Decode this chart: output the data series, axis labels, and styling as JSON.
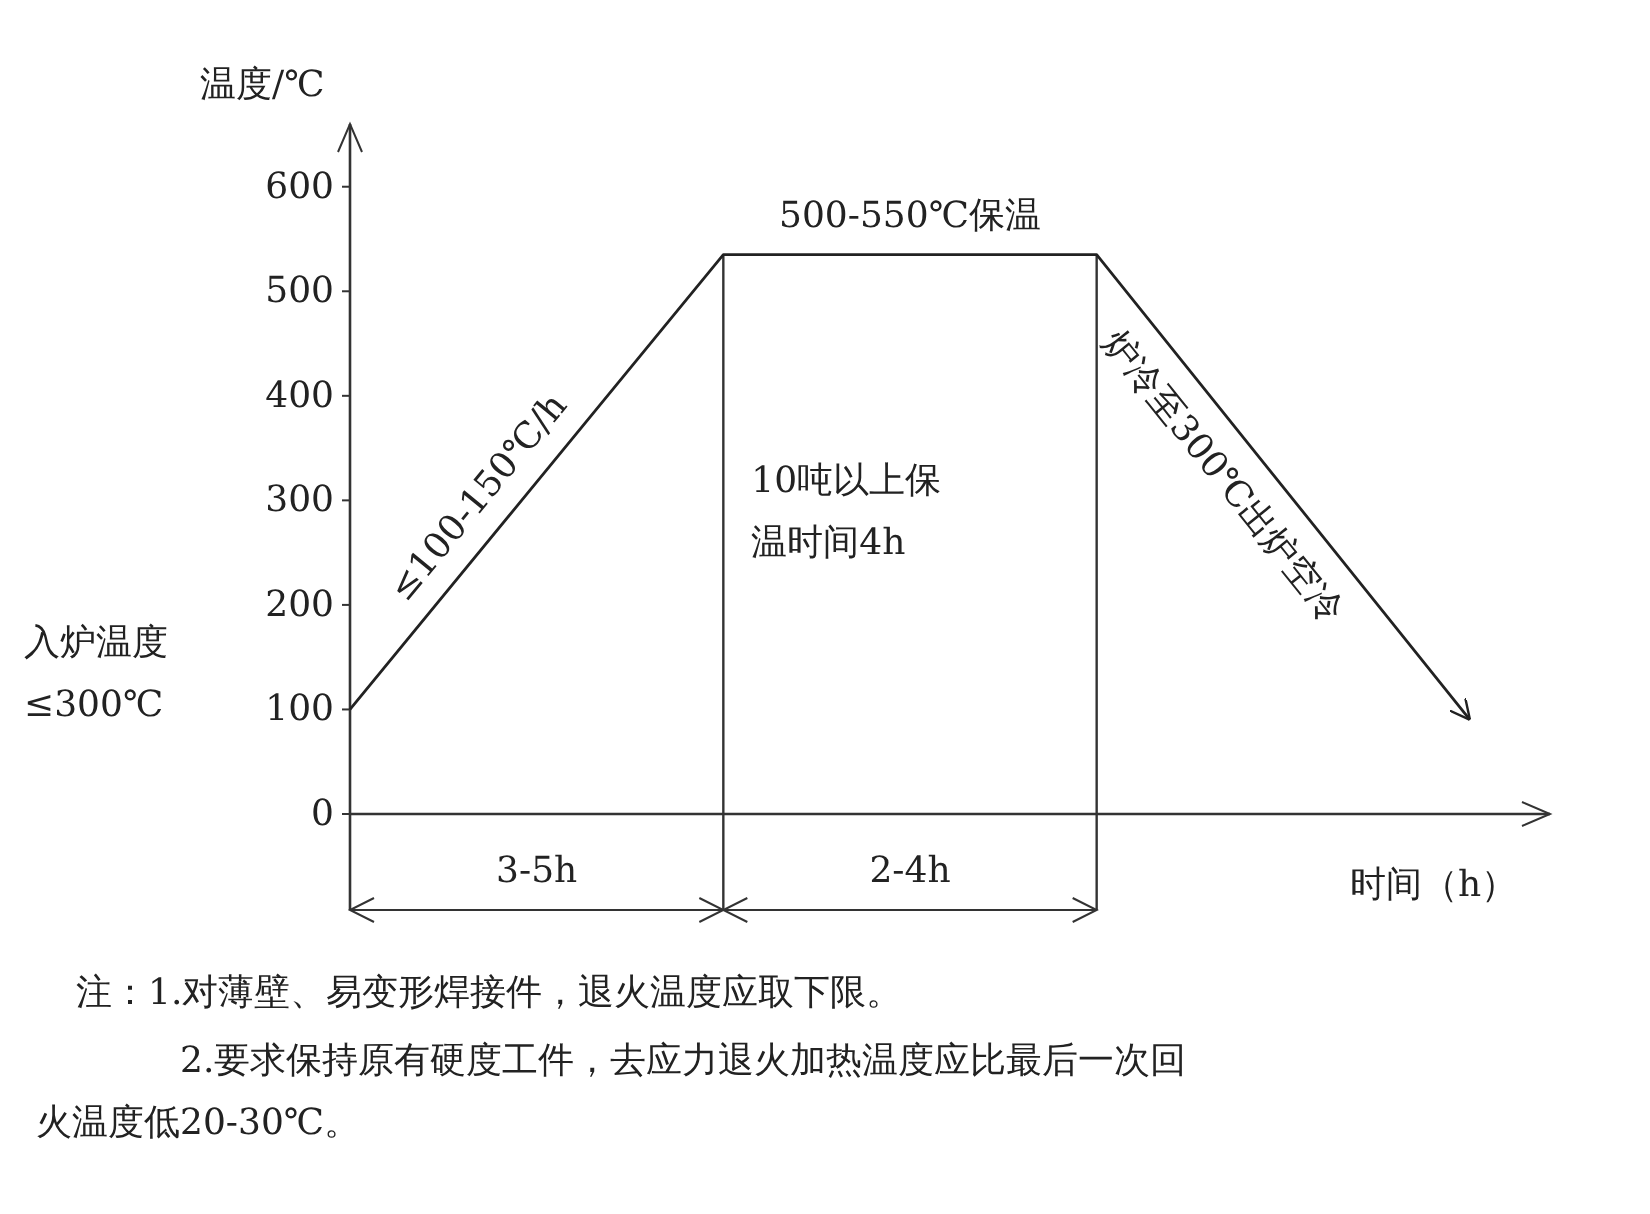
{
  "chart_data": {
    "type": "line",
    "ylabel": "温度/℃",
    "xlabel": "时间（h）",
    "categories": [
      null,
      null,
      null,
      null
    ],
    "values": [
      100,
      535,
      535,
      90
    ],
    "color": "#222222",
    "ylim": [
      0,
      660
    ],
    "yticks": [
      0,
      100,
      200,
      300,
      400,
      500,
      600
    ],
    "annotations": [
      "500-550℃保温",
      "≤100-150℃/h",
      "10吨以上保温时间4h",
      "炉冷至300℃出炉空冷",
      "入炉温度≤300℃",
      "3-5h",
      "2-4h",
      "注：1.对薄壁、易变形焊接件，退火温度应取下限。",
      "2.要求保持原有硬度工件，去应力退火加热温度应比最后一次回火温度低20-30℃。"
    ]
  }
}
